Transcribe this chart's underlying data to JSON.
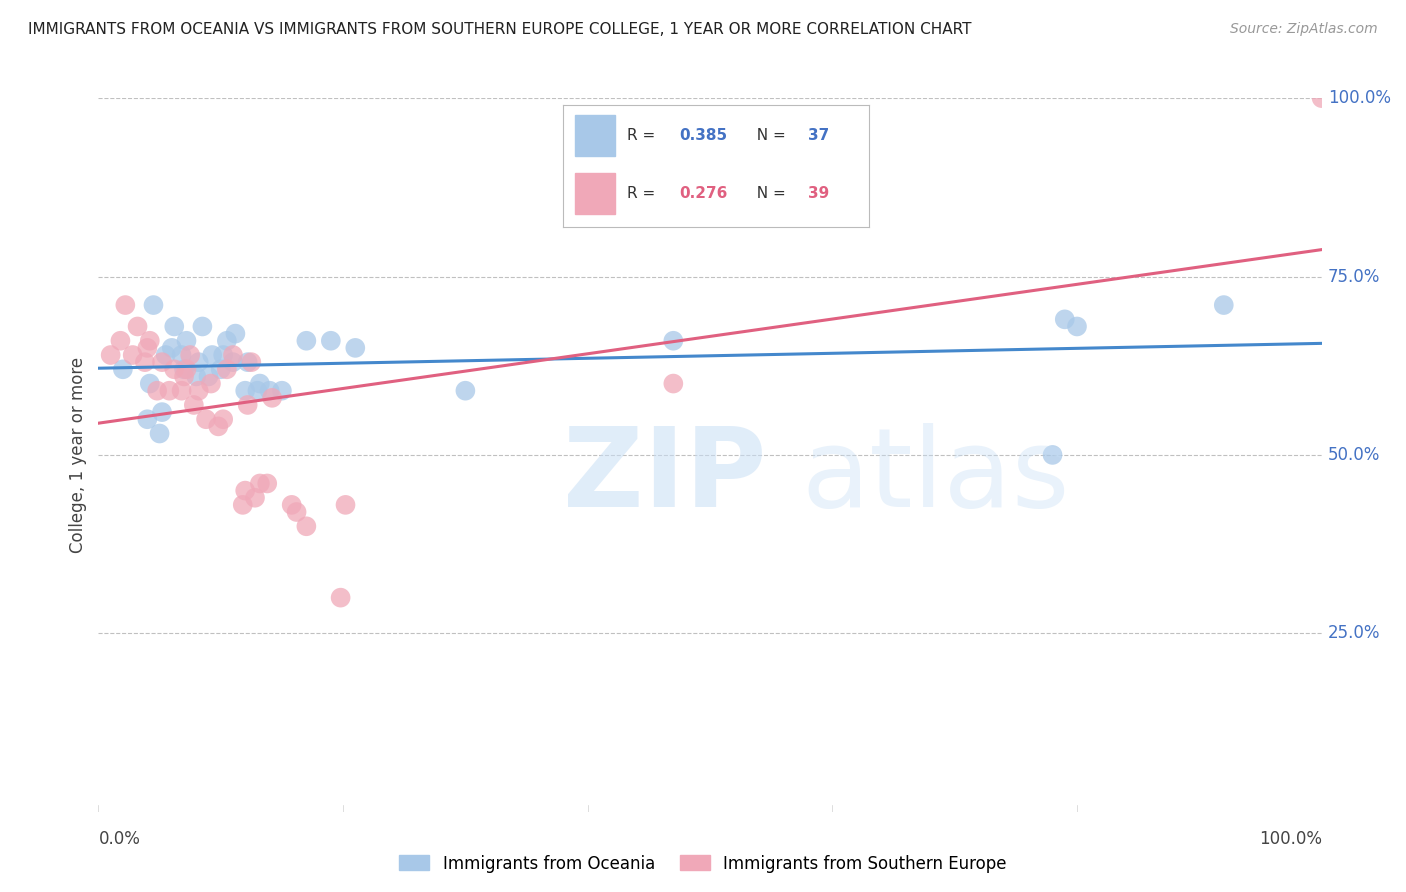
{
  "title": "IMMIGRANTS FROM OCEANIA VS IMMIGRANTS FROM SOUTHERN EUROPE COLLEGE, 1 YEAR OR MORE CORRELATION CHART",
  "source": "Source: ZipAtlas.com",
  "ylabel": "College, 1 year or more",
  "legend_label1": "Immigrants from Oceania",
  "legend_label2": "Immigrants from Southern Europe",
  "R1": 0.385,
  "N1": 37,
  "R2": 0.276,
  "N2": 39,
  "color_blue": "#a8c8e8",
  "color_pink": "#f0a8b8",
  "line_color_blue": "#4488cc",
  "line_color_pink": "#e06080",
  "legend_text_color": "#4472c4",
  "right_axis_color": "#4472c4",
  "blue_x": [
    0.02,
    0.04,
    0.042,
    0.045,
    0.05,
    0.052,
    0.055,
    0.06,
    0.062,
    0.068,
    0.07,
    0.072,
    0.08,
    0.082,
    0.085,
    0.09,
    0.093,
    0.1,
    0.102,
    0.105,
    0.11,
    0.112,
    0.12,
    0.122,
    0.13,
    0.132,
    0.14,
    0.15,
    0.17,
    0.19,
    0.21,
    0.3,
    0.47,
    0.78,
    0.79,
    0.8,
    0.92
  ],
  "blue_y": [
    0.62,
    0.55,
    0.6,
    0.71,
    0.53,
    0.56,
    0.64,
    0.65,
    0.68,
    0.64,
    0.62,
    0.66,
    0.61,
    0.63,
    0.68,
    0.61,
    0.64,
    0.62,
    0.64,
    0.66,
    0.63,
    0.67,
    0.59,
    0.63,
    0.59,
    0.6,
    0.59,
    0.59,
    0.66,
    0.66,
    0.65,
    0.59,
    0.66,
    0.5,
    0.69,
    0.68,
    0.71
  ],
  "pink_x": [
    0.01,
    0.018,
    0.022,
    0.028,
    0.032,
    0.038,
    0.04,
    0.042,
    0.048,
    0.052,
    0.058,
    0.062,
    0.068,
    0.07,
    0.072,
    0.075,
    0.078,
    0.082,
    0.088,
    0.092,
    0.098,
    0.102,
    0.105,
    0.11,
    0.118,
    0.12,
    0.122,
    0.125,
    0.128,
    0.132,
    0.138,
    0.142,
    0.158,
    0.162,
    0.17,
    0.198,
    0.202,
    0.47,
    1.0
  ],
  "pink_y": [
    0.64,
    0.66,
    0.71,
    0.64,
    0.68,
    0.63,
    0.65,
    0.66,
    0.59,
    0.63,
    0.59,
    0.62,
    0.59,
    0.61,
    0.62,
    0.64,
    0.57,
    0.59,
    0.55,
    0.6,
    0.54,
    0.55,
    0.62,
    0.64,
    0.43,
    0.45,
    0.57,
    0.63,
    0.44,
    0.46,
    0.46,
    0.58,
    0.43,
    0.42,
    0.4,
    0.3,
    0.43,
    0.6,
    1.0
  ],
  "xlim": [
    0.0,
    1.0
  ],
  "ylim": [
    0.0,
    1.0
  ],
  "y_tick_positions": [
    0.25,
    0.5,
    0.75,
    1.0
  ],
  "y_tick_labels": [
    "25.0%",
    "50.0%",
    "75.0%",
    "100.0%"
  ]
}
